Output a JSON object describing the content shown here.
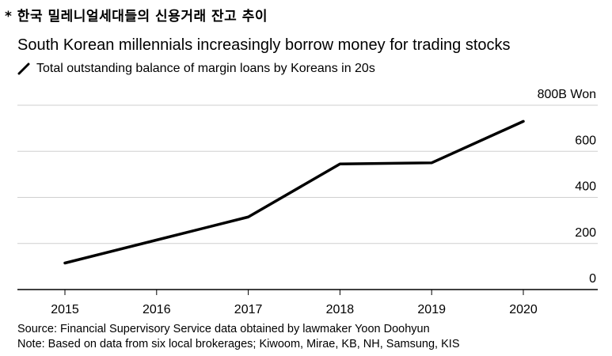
{
  "header": {
    "korean_title": "* 한국 밀레니얼세대들의 신용거래 잔고 추이",
    "title": "South Korean millennials increasingly borrow money for trading stocks"
  },
  "chart_data": {
    "type": "line",
    "title": "South Korean millennials increasingly borrow money for trading stocks",
    "series": [
      {
        "name": "Total outstanding balance of margin loans by Koreans in 20s",
        "color": "#000000",
        "x": [
          "2015",
          "2016",
          "2017",
          "2018",
          "2019",
          "2020"
        ],
        "values": [
          115,
          215,
          315,
          545,
          550,
          730
        ]
      }
    ],
    "categories": [
      "2015",
      "2016",
      "2017",
      "2018",
      "2019",
      "2020"
    ],
    "y_ticks": [
      {
        "value": 0,
        "label": "0"
      },
      {
        "value": 200,
        "label": "200"
      },
      {
        "value": 400,
        "label": "400"
      },
      {
        "value": 600,
        "label": "600"
      },
      {
        "value": 800,
        "label": "800B Won"
      }
    ],
    "ylim": [
      0,
      800
    ],
    "y_axis_side": "right",
    "grid": true,
    "xlabel": "",
    "ylabel": ""
  },
  "footer": {
    "source": "Source: Financial Supervisory Service data obtained by lawmaker Yoon Doohyun",
    "note": "Note: Based on data from six local brokerages; Kiwoom, Mirae, KB, NH, Samsung, KIS"
  }
}
